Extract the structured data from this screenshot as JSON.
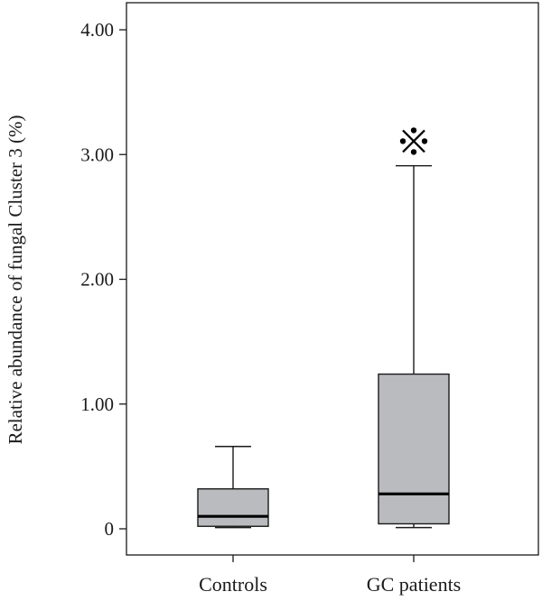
{
  "chart_data": {
    "type": "box",
    "title": "",
    "xlabel": "",
    "ylabel": "Relative abundance of fungal Cluster 3 (%)",
    "ylim": [
      0,
      4.0
    ],
    "yticks": [
      {
        "value": 0,
        "label": "0"
      },
      {
        "value": 1.0,
        "label": "1.00"
      },
      {
        "value": 2.0,
        "label": "2.00"
      },
      {
        "value": 3.0,
        "label": "3.00"
      },
      {
        "value": 4.0,
        "label": "4.00"
      }
    ],
    "categories": [
      "Controls",
      "GC patients"
    ],
    "boxes": [
      {
        "category": "Controls",
        "whisker_low": 0.01,
        "q1": 0.02,
        "median": 0.1,
        "q3": 0.32,
        "whisker_high": 0.66
      },
      {
        "category": "GC patients",
        "whisker_low": 0.01,
        "q1": 0.04,
        "median": 0.28,
        "q3": 1.24,
        "whisker_high": 2.91
      }
    ],
    "outlier_marker": {
      "category": "GC patients",
      "value": 3.1,
      "symbol": "※"
    },
    "colors": {
      "box_fill": "#babbbf",
      "stroke": "#1a1a1a",
      "median": "#000000"
    }
  }
}
